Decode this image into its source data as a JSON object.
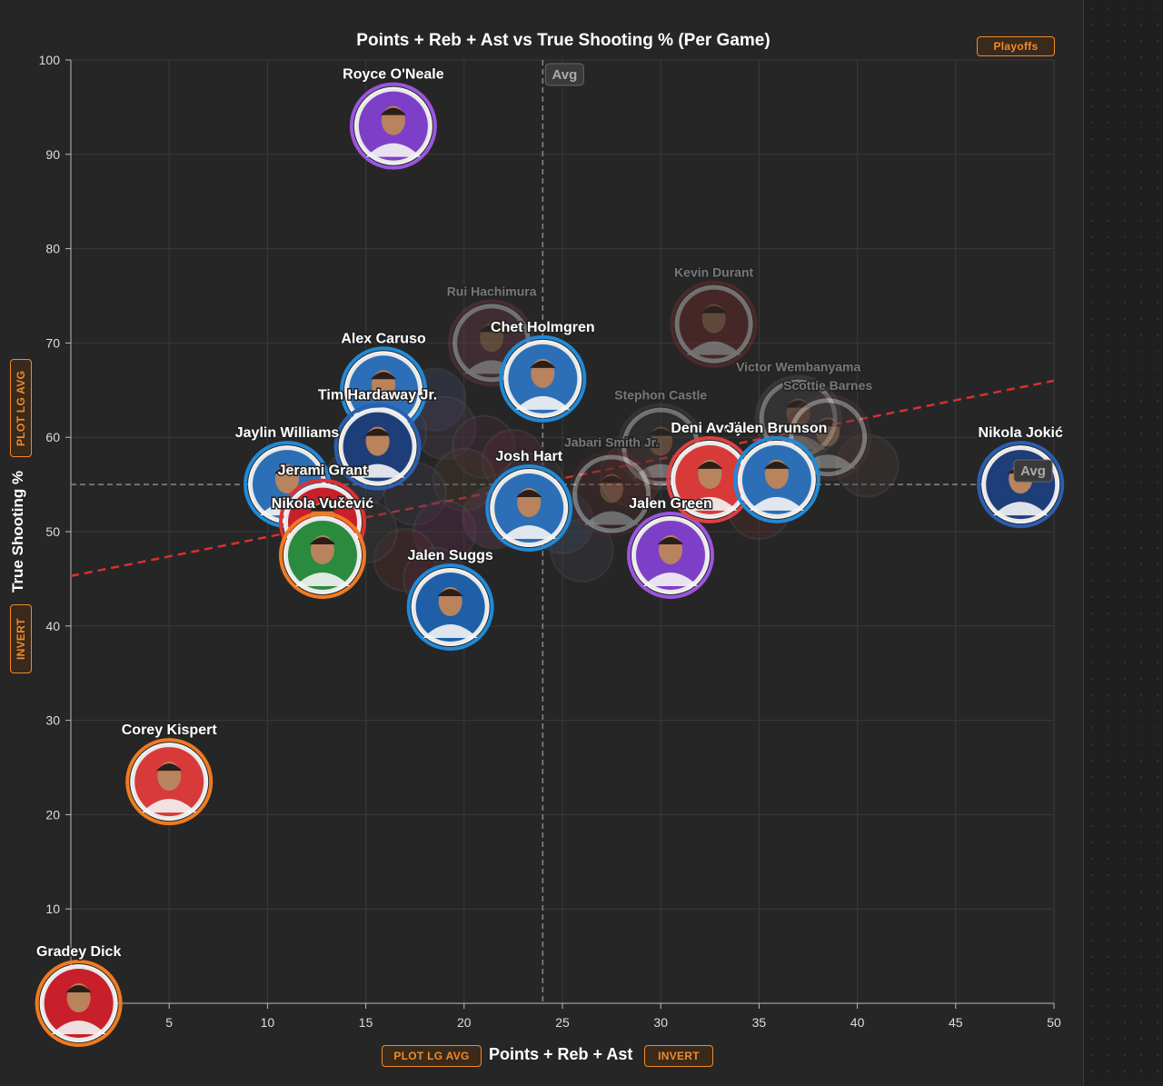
{
  "controls": {
    "playoffs_label": "Playoffs",
    "plot_lg_avg_label": "PLOT LG AVG",
    "invert_label": "INVERT"
  },
  "chart_data": {
    "type": "scatter",
    "title": "Points + Reb + Ast vs True Shooting % (Per Game)",
    "xlabel": "Points + Reb + Ast",
    "ylabel": "True Shooting %",
    "xlim": [
      0,
      50
    ],
    "ylim": [
      0,
      100
    ],
    "x_ticks": [
      5,
      10,
      15,
      20,
      25,
      30,
      35,
      40,
      45,
      50
    ],
    "y_ticks": [
      0,
      10,
      20,
      30,
      40,
      50,
      60,
      70,
      80,
      90,
      100
    ],
    "grid": true,
    "avg_label": "Avg",
    "avg_x": 24.0,
    "avg_y": 55.0,
    "trendline": {
      "x": [
        0,
        50
      ],
      "y": [
        45.3,
        66.0
      ]
    },
    "points": [
      {
        "name": "Royce O'Neale",
        "x": 16.4,
        "y": 93.0,
        "team_color": "#7e3fc8",
        "ring_color": "#9a55e0",
        "highlight": true
      },
      {
        "name": "Chet Holmgren",
        "x": 24.0,
        "y": 66.2,
        "team_color": "#2c6fb7",
        "ring_color": "#1f8ad8",
        "highlight": true
      },
      {
        "name": "Alex Caruso",
        "x": 15.9,
        "y": 65.0,
        "team_color": "#2c6fb7",
        "ring_color": "#1f8ad8",
        "highlight": true
      },
      {
        "name": "Tim Hardaway Jr.",
        "x": 15.6,
        "y": 59.0,
        "team_color": "#1e3e7a",
        "ring_color": "#2a5eb0",
        "highlight": true
      },
      {
        "name": "Jaylin Williams",
        "x": 11.0,
        "y": 55.0,
        "team_color": "#2c6fb7",
        "ring_color": "#1f8ad8",
        "highlight": true
      },
      {
        "name": "Jerami Grant",
        "x": 12.8,
        "y": 51.0,
        "team_color": "#c8202b",
        "ring_color": "#e03030",
        "highlight": true
      },
      {
        "name": "Nikola Vučević",
        "x": 12.8,
        "y": 47.5,
        "team_color": "#2a8a3e",
        "ring_color": "#f07a20",
        "highlight": true
      },
      {
        "name": "Josh Hart",
        "x": 23.3,
        "y": 52.5,
        "team_color": "#2c6fb7",
        "ring_color": "#1f8ad8",
        "highlight": true
      },
      {
        "name": "Jalen Suggs",
        "x": 19.3,
        "y": 42.0,
        "team_color": "#1e5fa8",
        "ring_color": "#1f8ad8",
        "highlight": true
      },
      {
        "name": "Jalen Green",
        "x": 30.5,
        "y": 47.5,
        "team_color": "#7e3fc8",
        "ring_color": "#9a55e0",
        "highlight": true
      },
      {
        "name": "Deni Avdija",
        "x": 32.5,
        "y": 55.5,
        "team_color": "#d83a3a",
        "ring_color": "#e04040",
        "highlight": true
      },
      {
        "name": "Jalen Brunson",
        "x": 35.9,
        "y": 55.5,
        "team_color": "#2c6fb7",
        "ring_color": "#1f8ad8",
        "highlight": true
      },
      {
        "name": "Nikola Jokić",
        "x": 48.3,
        "y": 55.0,
        "team_color": "#1e3e7a",
        "ring_color": "#2a5eb0",
        "highlight": true
      },
      {
        "name": "Corey Kispert",
        "x": 5.0,
        "y": 23.5,
        "team_color": "#d83a3a",
        "ring_color": "#f07a20",
        "highlight": true
      },
      {
        "name": "Gradey Dick",
        "x": 0.4,
        "y": 0.0,
        "team_color": "#c8202b",
        "ring_color": "#f07a20",
        "highlight": true
      },
      {
        "name": "Kevin Durant",
        "x": 32.7,
        "y": 72.0,
        "team_color": "#7a2a2a",
        "ring_color": "#8a3030",
        "highlight": false
      },
      {
        "name": "Rui Hachimura",
        "x": 21.4,
        "y": 70.0,
        "team_color": "#6a3a4a",
        "ring_color": "#7a3a4a",
        "highlight": false
      },
      {
        "name": "Victor Wembanyama",
        "x": 37.0,
        "y": 62.0,
        "team_color": "#4a4a4a",
        "ring_color": "#555",
        "highlight": false
      },
      {
        "name": "Scottie Barnes",
        "x": 38.5,
        "y": 60.0,
        "team_color": "#4a3a3a",
        "ring_color": "#553a3a",
        "highlight": false
      },
      {
        "name": "Stephon Castle",
        "x": 30.0,
        "y": 59.0,
        "team_color": "#3a3a3a",
        "ring_color": "#4a4a4a",
        "highlight": false
      },
      {
        "name": "Jabari Smith Jr.",
        "x": 27.5,
        "y": 54.0,
        "team_color": "#4a2a2a",
        "ring_color": "#552a2a",
        "highlight": false
      }
    ],
    "background_points": [
      {
        "x": 18.5,
        "y": 64.0,
        "color": "#3a4a6a"
      },
      {
        "x": 19.0,
        "y": 61.0,
        "color": "#4a3a4a"
      },
      {
        "x": 21.0,
        "y": 59.0,
        "color": "#4a2a3a"
      },
      {
        "x": 22.5,
        "y": 57.5,
        "color": "#5a2a3a"
      },
      {
        "x": 20.0,
        "y": 55.5,
        "color": "#4a3a2a"
      },
      {
        "x": 17.5,
        "y": 54.0,
        "color": "#3a3a4a"
      },
      {
        "x": 19.0,
        "y": 50.0,
        "color": "#5a2a4a"
      },
      {
        "x": 21.5,
        "y": 51.5,
        "color": "#6a3a5a"
      },
      {
        "x": 17.0,
        "y": 47.0,
        "color": "#5a2a2a"
      },
      {
        "x": 18.5,
        "y": 45.0,
        "color": "#4a2a3a"
      },
      {
        "x": 26.0,
        "y": 48.0,
        "color": "#3a3a4a"
      },
      {
        "x": 25.0,
        "y": 51.0,
        "color": "#3a4a5a"
      },
      {
        "x": 28.5,
        "y": 56.0,
        "color": "#5a2a2a"
      },
      {
        "x": 35.0,
        "y": 52.5,
        "color": "#5a2a2a"
      },
      {
        "x": 40.5,
        "y": 57.0,
        "color": "#4a3a3a"
      },
      {
        "x": 36.5,
        "y": 57.0,
        "color": "#4a4a3a"
      },
      {
        "x": 14.5,
        "y": 55.5,
        "color": "#3a4a6a"
      },
      {
        "x": 15.0,
        "y": 50.0,
        "color": "#3a3a3a"
      },
      {
        "x": 23.5,
        "y": 55.0,
        "color": "#3a3a4a"
      },
      {
        "x": 16.5,
        "y": 60.5,
        "color": "#2a3a5a"
      }
    ]
  }
}
